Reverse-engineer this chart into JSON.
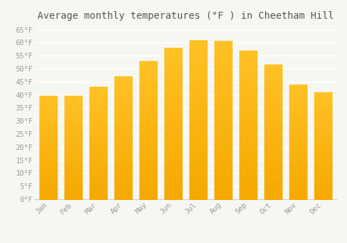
{
  "title": "Average monthly temperatures (°F ) in Cheetham Hill",
  "months": [
    "Jan",
    "Feb",
    "Mar",
    "Apr",
    "May",
    "Jun",
    "Jul",
    "Aug",
    "Sep",
    "Oct",
    "Nov",
    "Dec"
  ],
  "values": [
    39.5,
    39.5,
    43,
    47,
    53,
    58,
    61,
    60.5,
    57,
    51.5,
    44,
    41
  ],
  "bar_color": "#FFC125",
  "bar_color_dark": "#F5A800",
  "ylim": [
    0,
    67
  ],
  "yticks": [
    0,
    5,
    10,
    15,
    20,
    25,
    30,
    35,
    40,
    45,
    50,
    55,
    60,
    65
  ],
  "ytick_labels": [
    "0°F",
    "5°F",
    "10°F",
    "15°F",
    "20°F",
    "25°F",
    "30°F",
    "35°F",
    "40°F",
    "45°F",
    "50°F",
    "55°F",
    "60°F",
    "65°F"
  ],
  "bg_color": "#f7f7f2",
  "grid_color": "#e8e8e8",
  "title_fontsize": 10,
  "tick_fontsize": 7.5,
  "font_family": "monospace",
  "tick_color": "#999999",
  "spine_color": "#cccccc"
}
